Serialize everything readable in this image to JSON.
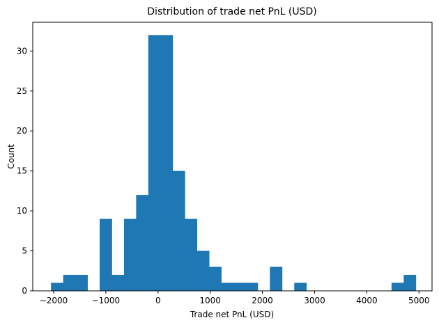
{
  "chart_data": {
    "type": "bar",
    "title": "Distribution of trade net PnL (USD)",
    "xlabel": "Trade net PnL (USD)",
    "ylabel": "Count",
    "xlim": [
      -2400,
      5250
    ],
    "ylim": [
      0,
      33.6
    ],
    "xticks": [
      -2000,
      -1000,
      0,
      1000,
      2000,
      3000,
      4000,
      5000
    ],
    "xtick_labels": [
      "−2000",
      "−1000",
      "0",
      "1000",
      "2000",
      "3000",
      "4000",
      "5000"
    ],
    "yticks": [
      0,
      5,
      10,
      15,
      20,
      25,
      30
    ],
    "ytick_labels": [
      "0",
      "5",
      "10",
      "15",
      "20",
      "25",
      "30"
    ],
    "bin_start": -2050,
    "bin_width": 233,
    "counts": [
      1,
      2,
      2,
      0,
      9,
      2,
      9,
      12,
      32,
      32,
      15,
      9,
      5,
      3,
      1,
      1,
      1,
      0,
      3,
      0,
      1,
      0,
      0,
      0,
      0,
      0,
      0,
      0,
      1,
      2
    ],
    "bar_color": "#1f77b4",
    "grid": false,
    "legend": "none"
  }
}
